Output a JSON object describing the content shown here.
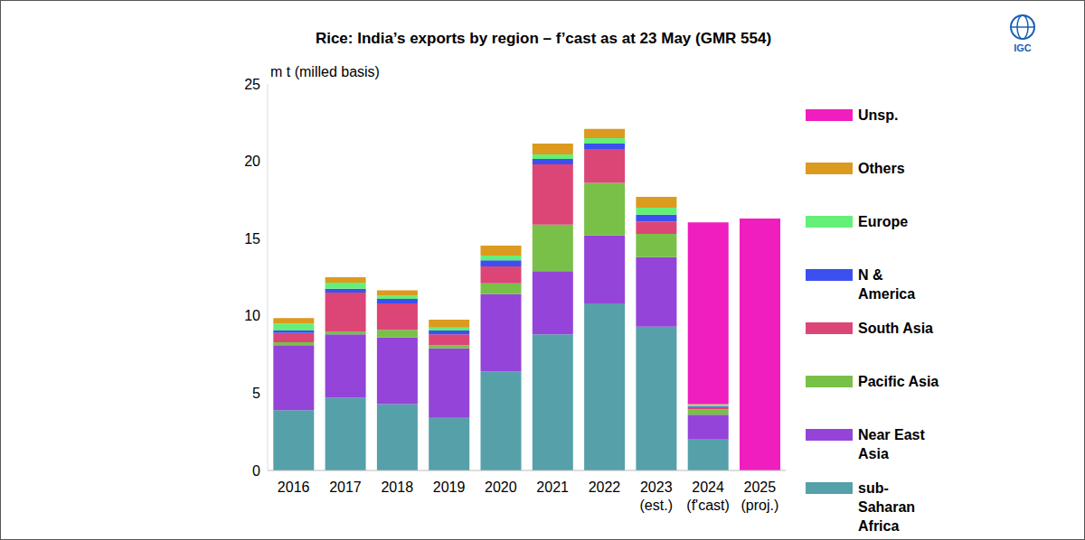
{
  "chart_data": {
    "type": "bar",
    "title": "Rice: India’s exports by region – f’cast as at 23 May (GMR 554)",
    "y_label": "m t (milled basis)",
    "annotations": [
      "IGC"
    ],
    "stacked": true,
    "grid": false,
    "legend": "right",
    "categories": [
      "2016",
      "2017",
      "2018",
      "2019",
      "2020",
      "2021",
      "2022",
      "2023 (est.)",
      "2024 (f'cast)",
      "2025 (proj.)"
    ],
    "ylim": [
      0,
      25
    ],
    "yticks": [
      0,
      5,
      10,
      15,
      20,
      25
    ],
    "series": [
      {
        "name": "sub-Saharan Africa",
        "color": "#56a0aa",
        "values": [
          3.9,
          4.7,
          4.3,
          3.4,
          6.4,
          8.8,
          10.8,
          9.3,
          2.0,
          0
        ]
      },
      {
        "name": "Near East Asia",
        "color": "#9444d8",
        "values": [
          4.2,
          4.1,
          4.3,
          4.5,
          5.0,
          4.1,
          4.4,
          4.5,
          1.6,
          0
        ]
      },
      {
        "name": "Pacific Asia",
        "color": "#78c048",
        "values": [
          0.2,
          0.2,
          0.5,
          0.2,
          0.7,
          3.0,
          3.4,
          1.5,
          0.35,
          0
        ]
      },
      {
        "name": "South Asia",
        "color": "#dc4676",
        "values": [
          0.6,
          2.5,
          1.7,
          0.7,
          1.1,
          3.9,
          2.2,
          0.8,
          0.15,
          0
        ]
      },
      {
        "name": "N & America",
        "color": "#3c50f0",
        "values": [
          0.15,
          0.25,
          0.3,
          0.25,
          0.4,
          0.35,
          0.35,
          0.45,
          0.05,
          0
        ]
      },
      {
        "name": "Europe",
        "color": "#64f078",
        "values": [
          0.45,
          0.4,
          0.2,
          0.2,
          0.3,
          0.3,
          0.35,
          0.45,
          0.1,
          0
        ]
      },
      {
        "name": "Others",
        "color": "#dc9a1e",
        "values": [
          0.35,
          0.35,
          0.35,
          0.5,
          0.65,
          0.7,
          0.6,
          0.7,
          0.05,
          0
        ]
      },
      {
        "name": "Unsp.",
        "color": "#f01ebe",
        "values": [
          0,
          0,
          0,
          0,
          0,
          0,
          0,
          0,
          11.75,
          16.3
        ]
      }
    ]
  }
}
